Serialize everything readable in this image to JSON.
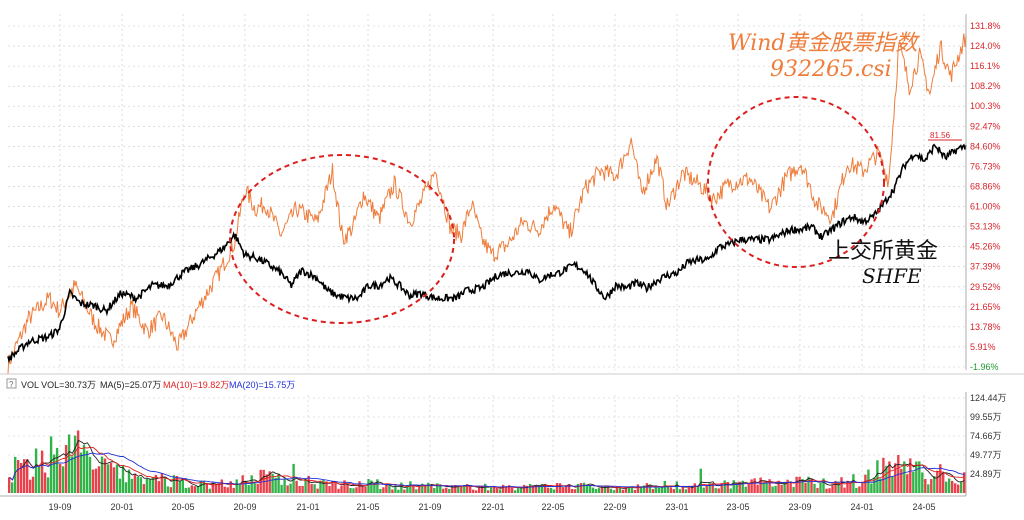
{
  "annotations": {
    "index_name": "Wind黄金股票指数",
    "index_code": "932265.csi",
    "shfe_cn": "上交所黄金",
    "shfe_en": "SHFE",
    "last_value_tag": "81.56"
  },
  "volume_legend": {
    "icon": "?",
    "vol": "VOL  VOL=30.73万",
    "ma5": "MA(5)=25.07万",
    "ma10": "MA(10)=19.82万",
    "ma20": "MA(20)=15.75万"
  },
  "colors": {
    "index_line": "#ee7d3b",
    "shfe_line": "#000000",
    "circle": "#dd1f1f",
    "ma10": "#e02020",
    "ma20": "#2030d8",
    "ma5": "#222222",
    "vol_up": "#e8414b",
    "vol_down": "#32b34a",
    "grid": "#c9c9c9",
    "axis_text": "#333333",
    "neg_text": "#1a9a2e",
    "pos_text": "#d8232a"
  },
  "chart_data": {
    "type": "line",
    "x_tick_labels": [
      "19-09",
      "20-01",
      "20-05",
      "20-09",
      "21-01",
      "21-05",
      "21-09",
      "22-01",
      "22-05",
      "22-09",
      "23-01",
      "23-05",
      "23-09",
      "24-01",
      "24-05"
    ],
    "y_axis_labels": [
      "131.8%",
      "124.0%",
      "116.1%",
      "108.2%",
      "100.3%",
      "92.47%",
      "84.60%",
      "76.73%",
      "68.86%",
      "61.00%",
      "53.13%",
      "45.26%",
      "37.39%",
      "29.52%",
      "21.65%",
      "13.78%",
      "5.91%",
      "-1.96%"
    ],
    "ylim": [
      -1.96,
      131.8
    ],
    "volume_axis_labels": [
      "124.44万",
      "99.55万",
      "74.66万",
      "49.77万",
      "24.89万"
    ],
    "volume_ylim": [
      0,
      124.44
    ],
    "series": [
      {
        "name": "Wind黄金股票指数",
        "anchors": [
          [
            0,
            -1
          ],
          [
            4,
            17
          ],
          [
            8,
            25
          ],
          [
            10,
            20
          ],
          [
            13,
            30
          ],
          [
            17,
            15
          ],
          [
            20,
            8
          ],
          [
            24,
            22
          ],
          [
            27,
            12
          ],
          [
            30,
            18
          ],
          [
            33,
            6
          ],
          [
            36,
            18
          ],
          [
            38,
            25
          ],
          [
            41,
            35
          ],
          [
            44,
            47
          ],
          [
            46,
            68
          ],
          [
            48,
            60
          ],
          [
            50,
            62
          ],
          [
            53,
            50
          ],
          [
            56,
            60
          ],
          [
            60,
            55
          ],
          [
            63,
            75
          ],
          [
            65,
            48
          ],
          [
            67,
            53
          ],
          [
            69,
            66
          ],
          [
            72,
            56
          ],
          [
            75,
            70
          ],
          [
            78,
            55
          ],
          [
            80,
            62
          ],
          [
            83,
            75
          ],
          [
            86,
            52
          ],
          [
            88,
            50
          ],
          [
            90,
            62
          ],
          [
            92,
            48
          ],
          [
            94,
            42
          ],
          [
            97,
            46
          ],
          [
            100,
            55
          ],
          [
            103,
            52
          ],
          [
            106,
            62
          ],
          [
            109,
            50
          ],
          [
            112,
            68
          ],
          [
            115,
            75
          ],
          [
            118,
            73
          ],
          [
            121,
            87
          ],
          [
            123,
            66
          ],
          [
            126,
            80
          ],
          [
            128,
            61
          ],
          [
            131,
            74
          ],
          [
            134,
            70
          ],
          [
            137,
            64
          ],
          [
            140,
            70
          ],
          [
            144,
            72
          ],
          [
            148,
            60
          ],
          [
            151,
            72
          ],
          [
            154,
            78
          ],
          [
            157,
            62
          ],
          [
            160,
            57
          ],
          [
            163,
            78
          ],
          [
            166,
            75
          ],
          [
            169,
            82
          ],
          [
            171,
            71
          ],
          [
            173,
            125
          ],
          [
            175,
            108
          ],
          [
            177,
            120
          ],
          [
            179,
            105
          ],
          [
            181,
            124
          ],
          [
            183,
            112
          ],
          [
            186,
            128
          ]
        ],
        "values_pct_note": "index return % vs. start, read from right axis"
      },
      {
        "name": "上交所黄金",
        "anchors": [
          [
            0,
            1
          ],
          [
            4,
            8
          ],
          [
            8,
            10
          ],
          [
            10,
            13
          ],
          [
            12,
            27
          ],
          [
            14,
            23
          ],
          [
            17,
            22
          ],
          [
            19,
            20
          ],
          [
            22,
            27
          ],
          [
            25,
            25
          ],
          [
            28,
            30
          ],
          [
            31,
            30
          ],
          [
            34,
            35
          ],
          [
            37,
            38
          ],
          [
            40,
            42
          ],
          [
            42,
            45
          ],
          [
            44,
            50
          ],
          [
            46,
            42
          ],
          [
            48,
            41
          ],
          [
            50,
            39
          ],
          [
            53,
            35
          ],
          [
            55,
            30
          ],
          [
            57,
            36
          ],
          [
            60,
            33
          ],
          [
            62,
            28
          ],
          [
            64,
            26
          ],
          [
            66,
            25
          ],
          [
            68,
            25
          ],
          [
            70,
            30
          ],
          [
            72,
            30
          ],
          [
            74,
            33
          ],
          [
            76,
            30
          ],
          [
            78,
            26
          ],
          [
            80,
            27
          ],
          [
            83,
            25
          ],
          [
            85,
            25
          ],
          [
            87,
            25
          ],
          [
            89,
            28
          ],
          [
            92,
            29
          ],
          [
            95,
            34
          ],
          [
            97,
            35
          ],
          [
            99,
            35
          ],
          [
            101,
            36
          ],
          [
            103,
            32
          ],
          [
            105,
            34
          ],
          [
            107,
            35
          ],
          [
            110,
            38
          ],
          [
            112,
            36
          ],
          [
            114,
            30
          ],
          [
            116,
            25
          ],
          [
            118,
            30
          ],
          [
            120,
            29
          ],
          [
            122,
            31
          ],
          [
            124,
            29
          ],
          [
            126,
            32
          ],
          [
            128,
            34
          ],
          [
            130,
            35
          ],
          [
            132,
            39
          ],
          [
            134,
            40
          ],
          [
            136,
            40
          ],
          [
            138,
            45
          ],
          [
            140,
            46
          ],
          [
            142,
            48
          ],
          [
            144,
            48
          ],
          [
            146,
            48
          ],
          [
            148,
            48
          ],
          [
            150,
            50
          ],
          [
            152,
            52
          ],
          [
            154,
            52
          ],
          [
            156,
            53
          ],
          [
            158,
            49
          ],
          [
            160,
            52
          ],
          [
            162,
            55
          ],
          [
            164,
            57
          ],
          [
            166,
            55
          ],
          [
            168,
            57
          ],
          [
            170,
            62
          ],
          [
            172,
            68
          ],
          [
            174,
            77
          ],
          [
            176,
            82
          ],
          [
            178,
            79
          ],
          [
            180,
            85
          ],
          [
            182,
            80
          ],
          [
            184,
            83
          ],
          [
            186,
            85
          ]
        ]
      }
    ],
    "volume": {
      "ma5_last": 25.07,
      "ma10_last": 19.82,
      "ma20_last": 15.75,
      "vol_last": 30.73,
      "unit": "万"
    }
  }
}
